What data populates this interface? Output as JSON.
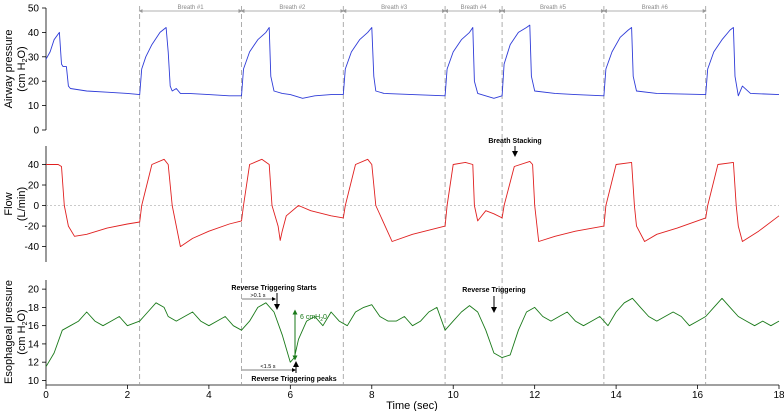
{
  "chart_data": {
    "type": "line",
    "xlabel": "Time (sec)",
    "xlim": [
      0,
      18
    ],
    "x_ticks": [
      "0",
      "2",
      "4",
      "6",
      "8",
      "10",
      "12",
      "14",
      "16",
      "18"
    ],
    "breath_boundaries": [
      2.3,
      4.8,
      7.3,
      9.8,
      11.2,
      13.7,
      16.2
    ],
    "breath_labels": [
      "Breath #1",
      "Breath #2",
      "Breath #3",
      "Breath #4",
      "Breath #5",
      "Breath #6"
    ],
    "colors": {
      "paw": "#2f3cd8",
      "flow": "#e02020",
      "pes": "#1a7a1a",
      "guide": "#999999",
      "zero": "#aaaaaa"
    },
    "panels": [
      {
        "id": "paw",
        "ylabel_line1": "Airway pressure",
        "ylabel_line2": "(cm H",
        "ylabel_sub": "2",
        "ylabel_end": "O)",
        "ylim": [
          0,
          50
        ],
        "y_ticks": [
          "50",
          "40",
          "30",
          "20",
          "10",
          "0"
        ],
        "series": {
          "x": [
            0.0,
            0.1,
            0.2,
            0.33,
            0.38,
            0.42,
            0.5,
            0.55,
            0.6,
            1.0,
            1.5,
            2.0,
            2.3,
            2.35,
            2.45,
            2.6,
            2.8,
            2.95,
            3.0,
            3.05,
            3.1,
            3.2,
            3.3,
            3.5,
            4.0,
            4.5,
            4.8,
            4.85,
            5.0,
            5.2,
            5.4,
            5.48,
            5.52,
            5.6,
            5.8,
            6.0,
            6.3,
            6.6,
            7.0,
            7.3,
            7.35,
            7.5,
            7.7,
            7.9,
            8.0,
            8.05,
            8.1,
            8.3,
            9.0,
            9.8,
            9.85,
            10.0,
            10.2,
            10.4,
            10.48,
            10.52,
            10.6,
            11.0,
            11.2,
            11.25,
            11.4,
            11.6,
            11.8,
            11.88,
            11.92,
            12.0,
            12.5,
            13.0,
            13.7,
            13.75,
            13.9,
            14.1,
            14.3,
            14.38,
            14.42,
            14.5,
            15.0,
            16.2,
            16.25,
            16.4,
            16.6,
            16.8,
            16.88,
            16.92,
            17.0,
            17.1,
            17.3,
            18.0
          ],
          "y": [
            29,
            32,
            37,
            40,
            27,
            26,
            26,
            18,
            17,
            16,
            15.5,
            15,
            14.5,
            25,
            30,
            35,
            40,
            42,
            32,
            18,
            16,
            17,
            15,
            15,
            14.5,
            14,
            14,
            25,
            32,
            37,
            40,
            42,
            22,
            16,
            15,
            14.5,
            13,
            14,
            14.5,
            14.5,
            25,
            32,
            37,
            40,
            42,
            22,
            16,
            15,
            14.5,
            14,
            25,
            32,
            37,
            40,
            42,
            20,
            15,
            13,
            14,
            27,
            35,
            40,
            42,
            43,
            22,
            16,
            15,
            14.5,
            14,
            25,
            32,
            38,
            41,
            42,
            22,
            16,
            15,
            14.5,
            25,
            32,
            37,
            41,
            42,
            22,
            14,
            18,
            15,
            14.5
          ]
        }
      },
      {
        "id": "flow",
        "ylabel_line1": "Flow",
        "ylabel_line2": "(L/min)",
        "ylim": [
          -55,
          58
        ],
        "y_ticks": [
          "40",
          "20",
          "0",
          "-20",
          "-40"
        ],
        "series": {
          "x": [
            0.0,
            0.3,
            0.38,
            0.45,
            0.55,
            0.7,
            1.0,
            1.5,
            2.0,
            2.3,
            2.35,
            2.6,
            2.9,
            3.0,
            3.1,
            3.3,
            3.6,
            4.0,
            4.5,
            4.8,
            4.85,
            5.0,
            5.3,
            5.48,
            5.55,
            5.7,
            5.75,
            5.8,
            5.9,
            6.2,
            6.5,
            7.0,
            7.3,
            7.35,
            7.6,
            7.9,
            8.0,
            8.1,
            8.5,
            9.0,
            9.8,
            9.85,
            10.0,
            10.3,
            10.48,
            10.52,
            10.6,
            10.8,
            11.0,
            11.2,
            11.25,
            11.5,
            11.88,
            11.95,
            12.0,
            12.1,
            12.5,
            13.0,
            13.7,
            13.75,
            14.0,
            14.38,
            14.45,
            14.5,
            14.7,
            15.0,
            15.5,
            16.2,
            16.25,
            16.5,
            16.88,
            16.95,
            17.0,
            17.1,
            17.5,
            18.0
          ],
          "y": [
            40,
            40,
            38,
            0,
            -20,
            -30,
            -28,
            -22,
            -18,
            -16,
            0,
            40,
            45,
            40,
            0,
            -40,
            -32,
            -25,
            -18,
            -15,
            0,
            40,
            45,
            40,
            0,
            -20,
            -34,
            -25,
            -10,
            0,
            -5,
            -10,
            -12,
            0,
            40,
            45,
            40,
            0,
            -35,
            -28,
            -20,
            0,
            40,
            42,
            40,
            0,
            -15,
            -5,
            -8,
            -12,
            0,
            38,
            43,
            40,
            0,
            -35,
            -30,
            -25,
            -20,
            0,
            40,
            42,
            0,
            -20,
            -35,
            -28,
            -22,
            -12,
            0,
            40,
            42,
            0,
            -20,
            -35,
            -25,
            -10
          ]
        }
      },
      {
        "id": "pes",
        "ylabel_line1": "Esophageal pressure",
        "ylabel_line2": "(cm H",
        "ylabel_sub": "2",
        "ylabel_end": "O)",
        "ylim": [
          9.5,
          21
        ],
        "y_ticks": [
          "20",
          "18",
          "16",
          "14",
          "12",
          "10"
        ],
        "series": {
          "x": [
            0.0,
            0.2,
            0.4,
            0.6,
            0.8,
            1.0,
            1.2,
            1.4,
            1.6,
            1.8,
            2.0,
            2.3,
            2.5,
            2.7,
            2.9,
            3.0,
            3.2,
            3.4,
            3.6,
            3.8,
            4.0,
            4.2,
            4.4,
            4.6,
            4.8,
            5.0,
            5.2,
            5.4,
            5.6,
            5.8,
            6.0,
            6.1,
            6.2,
            6.4,
            6.6,
            6.8,
            7.0,
            7.2,
            7.4,
            7.6,
            7.8,
            8.0,
            8.2,
            8.4,
            8.6,
            8.8,
            9.0,
            9.2,
            9.4,
            9.6,
            9.8,
            10.0,
            10.2,
            10.4,
            10.6,
            10.8,
            11.0,
            11.2,
            11.4,
            11.6,
            11.8,
            12.0,
            12.2,
            12.4,
            12.6,
            12.8,
            13.0,
            13.2,
            13.4,
            13.6,
            13.8,
            14.0,
            14.2,
            14.4,
            14.6,
            14.8,
            15.0,
            15.2,
            15.4,
            15.6,
            15.8,
            16.0,
            16.2,
            16.4,
            16.6,
            16.8,
            17.0,
            17.2,
            17.4,
            17.6,
            17.8,
            18.0
          ],
          "y": [
            11.5,
            13,
            15.5,
            16,
            16.5,
            17.5,
            16.5,
            16,
            16.5,
            17,
            16,
            16.5,
            17.5,
            18.5,
            18,
            17,
            16.5,
            17,
            17.5,
            16.5,
            16,
            16.5,
            17,
            16,
            15.5,
            16.5,
            18,
            18.5,
            17.5,
            15,
            12,
            12.5,
            14.5,
            16.5,
            17,
            16,
            17.5,
            16.5,
            16,
            17.5,
            18,
            18.3,
            17,
            16.5,
            16.5,
            17,
            16,
            16.5,
            17.5,
            18,
            15.5,
            16.5,
            17.5,
            18.2,
            17.5,
            15.5,
            13,
            12.5,
            12.8,
            15.5,
            17.5,
            18,
            17,
            16.5,
            17,
            17.5,
            16.5,
            16,
            16.5,
            17,
            16,
            17.5,
            18.5,
            19,
            18,
            17,
            16.5,
            17,
            17.5,
            17,
            16,
            16.5,
            17,
            18,
            19,
            18,
            17,
            16.5,
            16,
            16.5,
            16,
            16.5
          ]
        }
      }
    ],
    "annotations": {
      "breath_stacking": "Breath Stacking",
      "rt_starts": "Reverse Triggering Starts",
      "rt_peaks": "Reverse Triggering peaks",
      "rt": "Reverse Triggering",
      "gt_01": ">0.1 s",
      "lt_15": "<1.5 s",
      "six_cm_pre": "6 cmH",
      "six_cm_sub": "2",
      "six_cm_post": "0"
    }
  }
}
